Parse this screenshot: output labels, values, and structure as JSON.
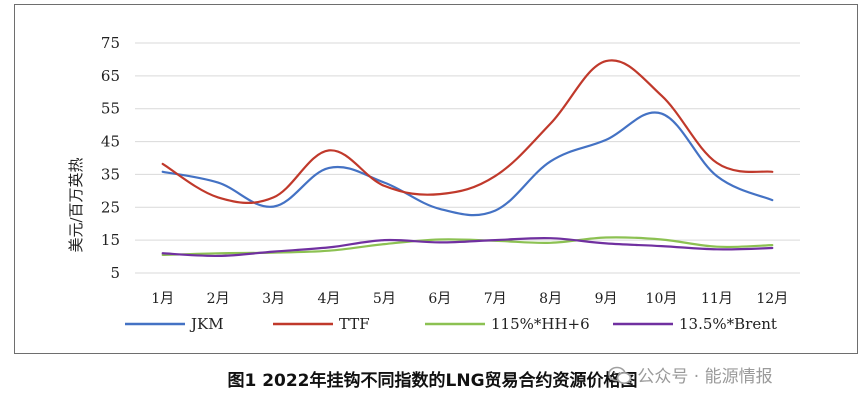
{
  "chart_data": {
    "type": "line",
    "title": "",
    "xlabel": "",
    "ylabel": "美元/百万英热",
    "categories": [
      "1月",
      "2月",
      "3月",
      "4月",
      "5月",
      "6月",
      "7月",
      "8月",
      "9月",
      "10月",
      "11月",
      "12月"
    ],
    "yticks": [
      5,
      15,
      25,
      35,
      45,
      55,
      65,
      75
    ],
    "ylim": [
      5,
      75
    ],
    "grid": true,
    "legend_position": "bottom",
    "series": [
      {
        "name": "JKM",
        "color": "#4472c4",
        "values": [
          35.8,
          32.5,
          25.2,
          37.0,
          32.5,
          24.5,
          24.0,
          39.0,
          45.5,
          53.5,
          34.5,
          27.2
        ]
      },
      {
        "name": "TTF",
        "color": "#c0392b",
        "values": [
          38.2,
          28.0,
          28.0,
          42.3,
          31.5,
          29.0,
          34.5,
          50.5,
          69.5,
          59.0,
          38.5,
          35.8
        ]
      },
      {
        "name": "115%*HH+6",
        "color": "#8cc152",
        "values": [
          10.5,
          11.0,
          11.2,
          11.8,
          13.8,
          15.2,
          14.8,
          14.2,
          15.8,
          15.2,
          13.0,
          13.5
        ]
      },
      {
        "name": "13.5%*Brent",
        "color": "#7030a0",
        "values": [
          11.0,
          10.2,
          11.5,
          12.8,
          15.0,
          14.3,
          15.0,
          15.6,
          14.0,
          13.2,
          12.2,
          12.6
        ]
      }
    ]
  },
  "caption": "图1 2022年挂钩不同指数的LNG贸易合约资源价格图",
  "watermark": "公众号 · 能源情报"
}
